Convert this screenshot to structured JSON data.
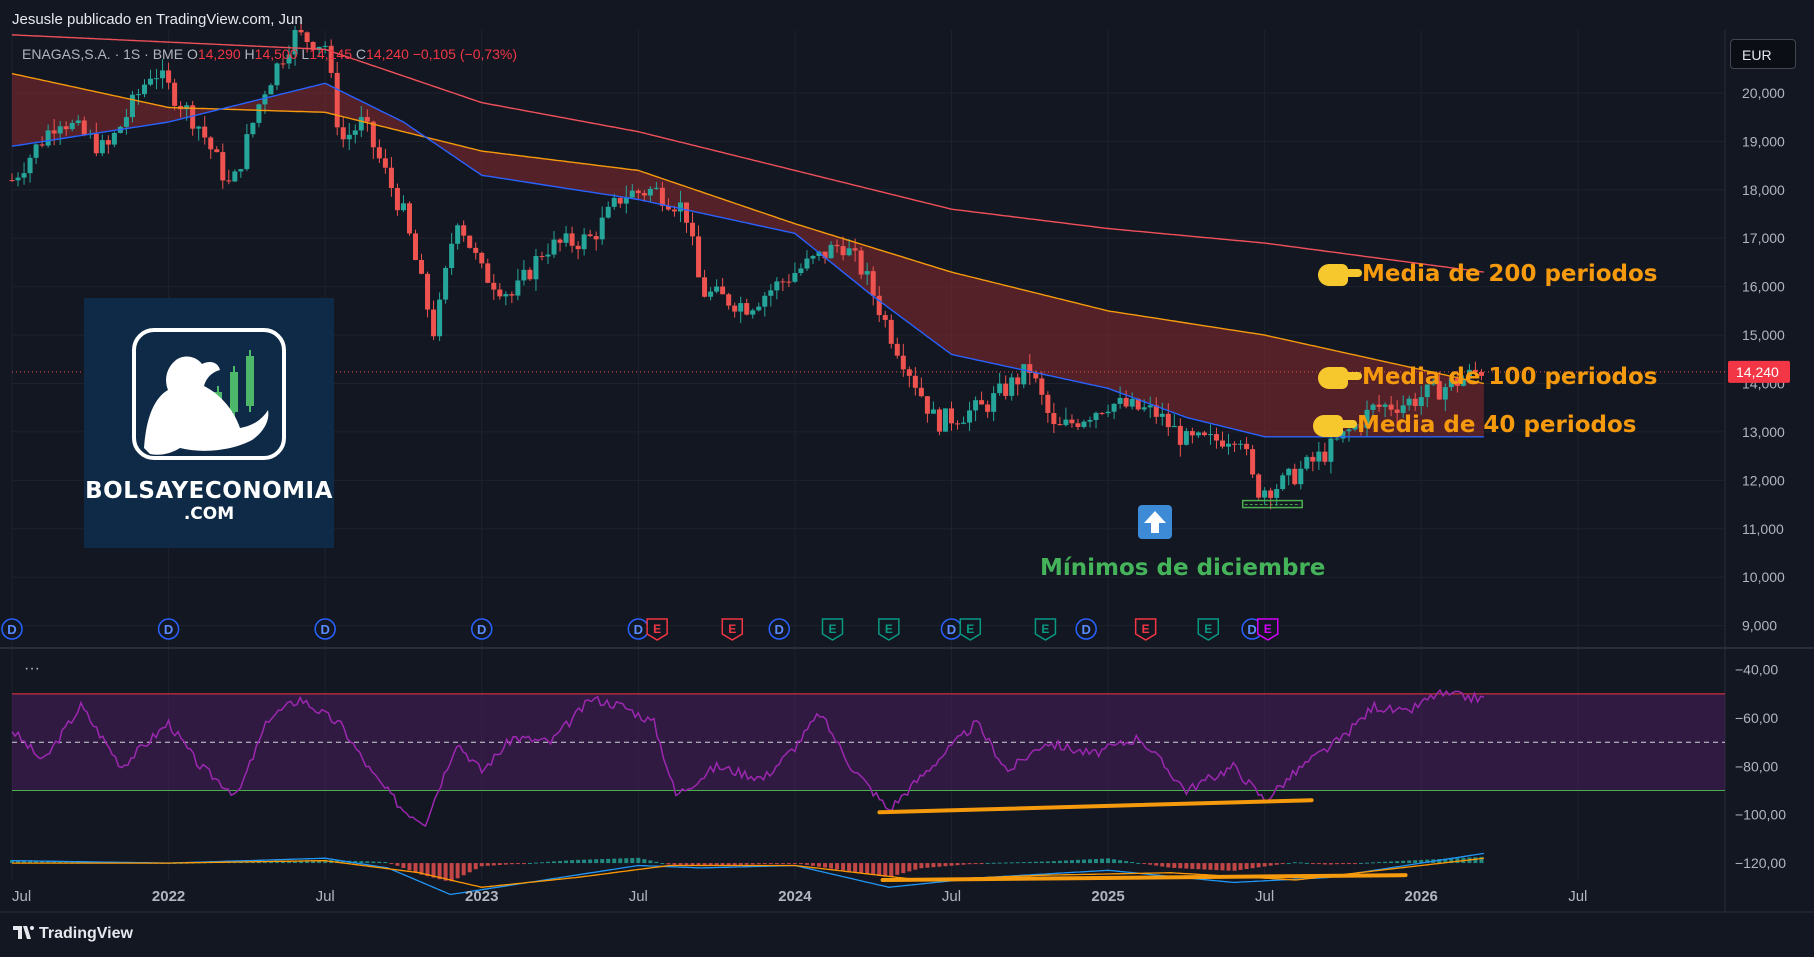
{
  "header": {
    "publisher": "Jesusle publicado en TradingView.com, Jun"
  },
  "ticker": {
    "symbol": "ENAGAS,S.A. · 1S · BME",
    "open_label": "O",
    "open": "14,290",
    "high_label": "H",
    "high": "14,500",
    "low_label": "L",
    "low": "14,145",
    "close_label": "C",
    "close": "14,240",
    "change": "−0,105 (−0,73%)"
  },
  "currency": "EUR",
  "logo": {
    "name": "BOLSAYECONOMIA",
    "domain": ".COM"
  },
  "annotations": {
    "ma200": "Media de 200 periodos",
    "ma100": "Media de 100 periodos",
    "ma40": "Media de 40 periodos",
    "minimos": "Mínimos de diciembre"
  },
  "branding": "TradingView",
  "indicator_menu": "···",
  "colors": {
    "background": "#131722",
    "up": "#26a69a",
    "down": "#ef5350",
    "ma200": "#f0505a",
    "ma100": "#f59a0c",
    "ma40": "#2962ff",
    "rsi": "#9c27b0",
    "annotation": "#f59a0c",
    "green_text": "#44b35a"
  },
  "chart_data": [
    {
      "type": "candlestick",
      "timeframe": "1W",
      "x_ticks": [
        "Jul",
        "2022",
        "Jul",
        "2023",
        "Jul",
        "2024",
        "Jul",
        "2025",
        "Jul",
        "2026",
        "Jul"
      ],
      "y_ticks": [
        "20,000",
        "19,000",
        "18,000",
        "17,000",
        "16,000",
        "15,000",
        "14,000",
        "13,000",
        "12,000",
        "11,000",
        "10,000",
        "9,000"
      ],
      "ylim": [
        8.6,
        21.3
      ],
      "last_price": "14,240",
      "price_path": [
        {
          "t": 2021.5,
          "v": 18.2
        },
        {
          "t": 2021.65,
          "v": 19.5
        },
        {
          "t": 2021.8,
          "v": 18.8
        },
        {
          "t": 2021.95,
          "v": 20.5
        },
        {
          "t": 2022.1,
          "v": 19.3
        },
        {
          "t": 2022.2,
          "v": 18.0
        },
        {
          "t": 2022.3,
          "v": 20.0
        },
        {
          "t": 2022.4,
          "v": 21.2
        },
        {
          "t": 2022.5,
          "v": 21.0
        },
        {
          "t": 2022.55,
          "v": 19.0
        },
        {
          "t": 2022.62,
          "v": 19.4
        },
        {
          "t": 2022.75,
          "v": 17.5
        },
        {
          "t": 2022.85,
          "v": 15.0
        },
        {
          "t": 2022.92,
          "v": 17.5
        },
        {
          "t": 2023.0,
          "v": 16.3
        },
        {
          "t": 2023.1,
          "v": 15.8
        },
        {
          "t": 2023.2,
          "v": 16.8
        },
        {
          "t": 2023.35,
          "v": 17.0
        },
        {
          "t": 2023.45,
          "v": 17.9
        },
        {
          "t": 2023.55,
          "v": 18.0
        },
        {
          "t": 2023.65,
          "v": 17.6
        },
        {
          "t": 2023.7,
          "v": 15.9
        },
        {
          "t": 2023.85,
          "v": 15.6
        },
        {
          "t": 2024.0,
          "v": 16.3
        },
        {
          "t": 2024.15,
          "v": 16.9
        },
        {
          "t": 2024.22,
          "v": 16.3
        },
        {
          "t": 2024.3,
          "v": 15.1
        },
        {
          "t": 2024.45,
          "v": 13.2
        },
        {
          "t": 2024.6,
          "v": 13.5
        },
        {
          "t": 2024.75,
          "v": 14.3
        },
        {
          "t": 2024.83,
          "v": 13.0
        },
        {
          "t": 2025.0,
          "v": 13.6
        },
        {
          "t": 2025.15,
          "v": 13.4
        },
        {
          "t": 2025.25,
          "v": 12.8
        },
        {
          "t": 2025.33,
          "v": 12.8
        },
        {
          "t": 2025.42,
          "v": 13.0
        },
        {
          "t": 2025.47,
          "v": 11.8
        },
        {
          "t": 2025.55,
          "v": 11.9
        },
        {
          "t": 2025.7,
          "v": 12.6
        },
        {
          "t": 2025.85,
          "v": 13.5
        },
        {
          "t": 2025.95,
          "v": 13.6
        },
        {
          "t": 2026.1,
          "v": 14.0
        },
        {
          "t": 2026.2,
          "v": 14.3
        }
      ],
      "ma200": [
        {
          "t": 2021.5,
          "v": 21.2
        },
        {
          "t": 2022.5,
          "v": 20.9
        },
        {
          "t": 2023.0,
          "v": 19.8
        },
        {
          "t": 2023.5,
          "v": 19.2
        },
        {
          "t": 2024.0,
          "v": 18.4
        },
        {
          "t": 2024.5,
          "v": 17.6
        },
        {
          "t": 2025.0,
          "v": 17.2
        },
        {
          "t": 2025.5,
          "v": 16.9
        },
        {
          "t": 2026.2,
          "v": 16.3
        }
      ],
      "ma100": [
        {
          "t": 2021.5,
          "v": 20.4
        },
        {
          "t": 2022.0,
          "v": 19.7
        },
        {
          "t": 2022.5,
          "v": 19.6
        },
        {
          "t": 2023.0,
          "v": 18.8
        },
        {
          "t": 2023.5,
          "v": 18.4
        },
        {
          "t": 2024.0,
          "v": 17.3
        },
        {
          "t": 2024.5,
          "v": 16.3
        },
        {
          "t": 2025.0,
          "v": 15.5
        },
        {
          "t": 2025.5,
          "v": 15.0
        },
        {
          "t": 2026.2,
          "v": 14.0
        }
      ],
      "ma40": [
        {
          "t": 2021.5,
          "v": 18.9
        },
        {
          "t": 2022.0,
          "v": 19.4
        },
        {
          "t": 2022.5,
          "v": 20.2
        },
        {
          "t": 2022.75,
          "v": 19.4
        },
        {
          "t": 2023.0,
          "v": 18.3
        },
        {
          "t": 2023.5,
          "v": 17.8
        },
        {
          "t": 2024.0,
          "v": 17.1
        },
        {
          "t": 2024.25,
          "v": 15.8
        },
        {
          "t": 2024.5,
          "v": 14.6
        },
        {
          "t": 2025.0,
          "v": 13.9
        },
        {
          "t": 2025.25,
          "v": 13.3
        },
        {
          "t": 2025.5,
          "v": 12.9
        },
        {
          "t": 2025.75,
          "v": 12.9
        },
        {
          "t": 2026.2,
          "v": 12.9
        }
      ],
      "minimos_box": {
        "t_start": 2025.43,
        "t_end": 2025.62,
        "v": 11.5
      },
      "events": [
        {
          "t": 2021.5,
          "kind": "D"
        },
        {
          "t": 2022.0,
          "kind": "D"
        },
        {
          "t": 2022.5,
          "kind": "D"
        },
        {
          "t": 2023.0,
          "kind": "D"
        },
        {
          "t": 2023.5,
          "kind": "D"
        },
        {
          "t": 2023.56,
          "kind": "E-red"
        },
        {
          "t": 2023.8,
          "kind": "E-red"
        },
        {
          "t": 2023.95,
          "kind": "D"
        },
        {
          "t": 2024.12,
          "kind": "E-green"
        },
        {
          "t": 2024.3,
          "kind": "E-green"
        },
        {
          "t": 2024.5,
          "kind": "D"
        },
        {
          "t": 2024.56,
          "kind": "E-green"
        },
        {
          "t": 2024.8,
          "kind": "E-green"
        },
        {
          "t": 2024.93,
          "kind": "D"
        },
        {
          "t": 2025.12,
          "kind": "E-red"
        },
        {
          "t": 2025.32,
          "kind": "E-green"
        },
        {
          "t": 2025.46,
          "kind": "D"
        },
        {
          "t": 2025.51,
          "kind": "E-purple"
        }
      ]
    },
    {
      "type": "line",
      "name": "",
      "y_ticks": [
        "−40,00",
        "−60,00",
        "−80,00",
        "−100,00",
        "−120,00"
      ],
      "ylim": [
        -127,
        -36
      ],
      "band": [
        -50,
        -90
      ],
      "mid": -70,
      "rsi_path": [
        {
          "t": 2021.5,
          "v": -65
        },
        {
          "t": 2021.6,
          "v": -78
        },
        {
          "t": 2021.72,
          "v": -55
        },
        {
          "t": 2021.85,
          "v": -80
        },
        {
          "t": 2022.0,
          "v": -62
        },
        {
          "t": 2022.1,
          "v": -80
        },
        {
          "t": 2022.22,
          "v": -92
        },
        {
          "t": 2022.32,
          "v": -60
        },
        {
          "t": 2022.42,
          "v": -52
        },
        {
          "t": 2022.55,
          "v": -63
        },
        {
          "t": 2022.65,
          "v": -83
        },
        {
          "t": 2022.75,
          "v": -98
        },
        {
          "t": 2022.82,
          "v": -103
        },
        {
          "t": 2022.92,
          "v": -70
        },
        {
          "t": 2023.0,
          "v": -82
        },
        {
          "t": 2023.1,
          "v": -68
        },
        {
          "t": 2023.22,
          "v": -70
        },
        {
          "t": 2023.35,
          "v": -52
        },
        {
          "t": 2023.45,
          "v": -55
        },
        {
          "t": 2023.55,
          "v": -62
        },
        {
          "t": 2023.62,
          "v": -92
        },
        {
          "t": 2023.75,
          "v": -80
        },
        {
          "t": 2023.9,
          "v": -85
        },
        {
          "t": 2024.0,
          "v": -72
        },
        {
          "t": 2024.08,
          "v": -58
        },
        {
          "t": 2024.18,
          "v": -80
        },
        {
          "t": 2024.3,
          "v": -98
        },
        {
          "t": 2024.45,
          "v": -78
        },
        {
          "t": 2024.58,
          "v": -62
        },
        {
          "t": 2024.68,
          "v": -82
        },
        {
          "t": 2024.8,
          "v": -70
        },
        {
          "t": 2024.95,
          "v": -75
        },
        {
          "t": 2025.1,
          "v": -68
        },
        {
          "t": 2025.25,
          "v": -90
        },
        {
          "t": 2025.4,
          "v": -80
        },
        {
          "t": 2025.5,
          "v": -94
        },
        {
          "t": 2025.62,
          "v": -80
        },
        {
          "t": 2025.75,
          "v": -68
        },
        {
          "t": 2025.85,
          "v": -55
        },
        {
          "t": 2025.95,
          "v": -58
        },
        {
          "t": 2026.05,
          "v": -50
        },
        {
          "t": 2026.2,
          "v": -52
        }
      ],
      "macd_line": [
        {
          "t": 2021.5,
          "v": -119
        },
        {
          "t": 2022.0,
          "v": -120
        },
        {
          "t": 2022.5,
          "v": -118
        },
        {
          "t": 2022.7,
          "v": -122
        },
        {
          "t": 2022.9,
          "v": -133
        },
        {
          "t": 2023.1,
          "v": -129
        },
        {
          "t": 2023.5,
          "v": -121
        },
        {
          "t": 2023.7,
          "v": -122
        },
        {
          "t": 2024.0,
          "v": -121
        },
        {
          "t": 2024.3,
          "v": -130
        },
        {
          "t": 2024.6,
          "v": -126
        },
        {
          "t": 2025.0,
          "v": -123
        },
        {
          "t": 2025.4,
          "v": -128
        },
        {
          "t": 2025.7,
          "v": -126
        },
        {
          "t": 2026.0,
          "v": -120
        },
        {
          "t": 2026.2,
          "v": -116
        }
      ],
      "signal_line": [
        {
          "t": 2021.5,
          "v": -120
        },
        {
          "t": 2022.0,
          "v": -120
        },
        {
          "t": 2022.5,
          "v": -119
        },
        {
          "t": 2022.8,
          "v": -124
        },
        {
          "t": 2023.0,
          "v": -130
        },
        {
          "t": 2023.3,
          "v": -126
        },
        {
          "t": 2023.6,
          "v": -121
        },
        {
          "t": 2024.0,
          "v": -121
        },
        {
          "t": 2024.4,
          "v": -127
        },
        {
          "t": 2024.8,
          "v": -125
        },
        {
          "t": 2025.2,
          "v": -124
        },
        {
          "t": 2025.6,
          "v": -127
        },
        {
          "t": 2026.0,
          "v": -121
        },
        {
          "t": 2026.2,
          "v": -118
        }
      ],
      "trendlines": [
        {
          "t1": 2024.27,
          "v1": -99,
          "t2": 2025.65,
          "v2": -94
        },
        {
          "t1": 2024.28,
          "v1": -127,
          "t2": 2025.95,
          "v2": -125
        }
      ]
    }
  ]
}
